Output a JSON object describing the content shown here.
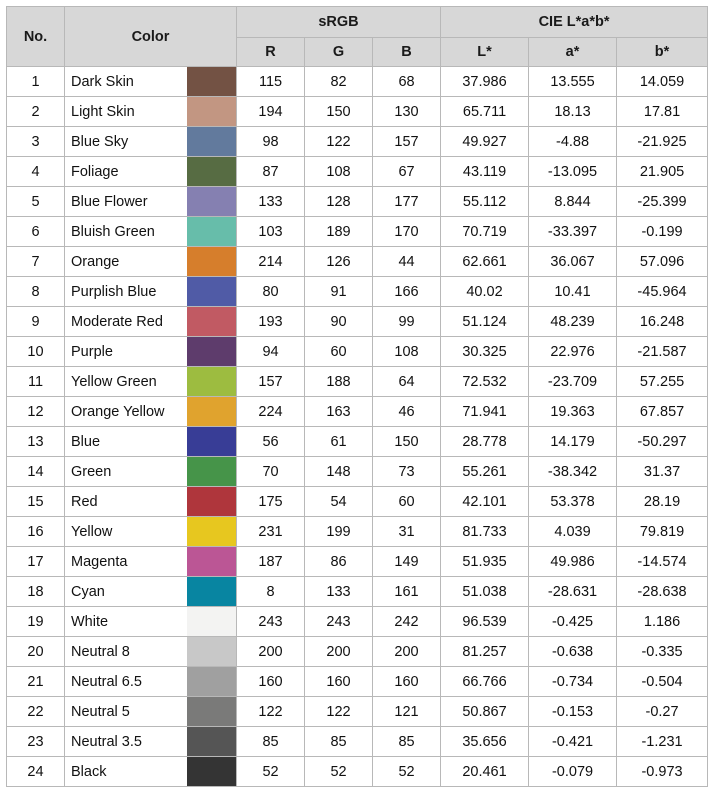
{
  "header": {
    "no": "No.",
    "color": "Color",
    "srgb": "sRGB",
    "cie": "CIE L*a*b*",
    "r": "R",
    "g": "G",
    "b": "B",
    "L": "L*",
    "a": "a*",
    "bstar": "b*"
  },
  "rows": [
    {
      "no": "1",
      "name": "Dark Skin",
      "hex": "#735244",
      "r": "115",
      "g": "82",
      "b": "68",
      "L": "37.986",
      "a": "13.555",
      "bb": "14.059"
    },
    {
      "no": "2",
      "name": "Light Skin",
      "hex": "#c29682",
      "r": "194",
      "g": "150",
      "b": "130",
      "L": "65.711",
      "a": "18.13",
      "bb": "17.81"
    },
    {
      "no": "3",
      "name": "Blue Sky",
      "hex": "#627a9d",
      "r": "98",
      "g": "122",
      "b": "157",
      "L": "49.927",
      "a": "-4.88",
      "bb": "-21.925"
    },
    {
      "no": "4",
      "name": "Foliage",
      "hex": "#576c43",
      "r": "87",
      "g": "108",
      "b": "67",
      "L": "43.119",
      "a": "-13.095",
      "bb": "21.905"
    },
    {
      "no": "5",
      "name": "Blue Flower",
      "hex": "#8580b1",
      "r": "133",
      "g": "128",
      "b": "177",
      "L": "55.112",
      "a": "8.844",
      "bb": "-25.399"
    },
    {
      "no": "6",
      "name": "Bluish Green",
      "hex": "#67bdaa",
      "r": "103",
      "g": "189",
      "b": "170",
      "L": "70.719",
      "a": "-33.397",
      "bb": "-0.199"
    },
    {
      "no": "7",
      "name": "Orange",
      "hex": "#d67e2c",
      "r": "214",
      "g": "126",
      "b": "44",
      "L": "62.661",
      "a": "36.067",
      "bb": "57.096"
    },
    {
      "no": "8",
      "name": "Purplish Blue",
      "hex": "#505ba6",
      "r": "80",
      "g": "91",
      "b": "166",
      "L": "40.02",
      "a": "10.41",
      "bb": "-45.964"
    },
    {
      "no": "9",
      "name": "Moderate Red",
      "hex": "#c15a63",
      "r": "193",
      "g": "90",
      "b": "99",
      "L": "51.124",
      "a": "48.239",
      "bb": "16.248"
    },
    {
      "no": "10",
      "name": "Purple",
      "hex": "#5e3c6c",
      "r": "94",
      "g": "60",
      "b": "108",
      "L": "30.325",
      "a": "22.976",
      "bb": "-21.587"
    },
    {
      "no": "11",
      "name": "Yellow Green",
      "hex": "#9dbc40",
      "r": "157",
      "g": "188",
      "b": "64",
      "L": "72.532",
      "a": "-23.709",
      "bb": "57.255"
    },
    {
      "no": "12",
      "name": "Orange Yellow",
      "hex": "#e0a32e",
      "r": "224",
      "g": "163",
      "b": "46",
      "L": "71.941",
      "a": "19.363",
      "bb": "67.857"
    },
    {
      "no": "13",
      "name": "Blue",
      "hex": "#383d96",
      "r": "56",
      "g": "61",
      "b": "150",
      "L": "28.778",
      "a": "14.179",
      "bb": "-50.297"
    },
    {
      "no": "14",
      "name": "Green",
      "hex": "#469449",
      "r": "70",
      "g": "148",
      "b": "73",
      "L": "55.261",
      "a": "-38.342",
      "bb": "31.37"
    },
    {
      "no": "15",
      "name": "Red",
      "hex": "#af363c",
      "r": "175",
      "g": "54",
      "b": "60",
      "L": "42.101",
      "a": "53.378",
      "bb": "28.19"
    },
    {
      "no": "16",
      "name": "Yellow",
      "hex": "#e7c71f",
      "r": "231",
      "g": "199",
      "b": "31",
      "L": "81.733",
      "a": "4.039",
      "bb": "79.819"
    },
    {
      "no": "17",
      "name": "Magenta",
      "hex": "#bb5695",
      "r": "187",
      "g": "86",
      "b": "149",
      "L": "51.935",
      "a": "49.986",
      "bb": "-14.574"
    },
    {
      "no": "18",
      "name": "Cyan",
      "hex": "#0885a1",
      "r": "8",
      "g": "133",
      "b": "161",
      "L": "51.038",
      "a": "-28.631",
      "bb": "-28.638"
    },
    {
      "no": "19",
      "name": "White",
      "hex": "#f3f3f2",
      "r": "243",
      "g": "243",
      "b": "242",
      "L": "96.539",
      "a": "-0.425",
      "bb": "1.186"
    },
    {
      "no": "20",
      "name": "Neutral 8",
      "hex": "#c8c8c8",
      "r": "200",
      "g": "200",
      "b": "200",
      "L": "81.257",
      "a": "-0.638",
      "bb": "-0.335"
    },
    {
      "no": "21",
      "name": "Neutral 6.5",
      "hex": "#a0a0a0",
      "r": "160",
      "g": "160",
      "b": "160",
      "L": "66.766",
      "a": "-0.734",
      "bb": "-0.504"
    },
    {
      "no": "22",
      "name": "Neutral 5",
      "hex": "#7a7a79",
      "r": "122",
      "g": "122",
      "b": "121",
      "L": "50.867",
      "a": "-0.153",
      "bb": "-0.27"
    },
    {
      "no": "23",
      "name": "Neutral 3.5",
      "hex": "#555555",
      "r": "85",
      "g": "85",
      "b": "85",
      "L": "35.656",
      "a": "-0.421",
      "bb": "-1.231"
    },
    {
      "no": "24",
      "name": "Black",
      "hex": "#343434",
      "r": "52",
      "g": "52",
      "b": "52",
      "L": "20.461",
      "a": "-0.079",
      "bb": "-0.973"
    }
  ]
}
